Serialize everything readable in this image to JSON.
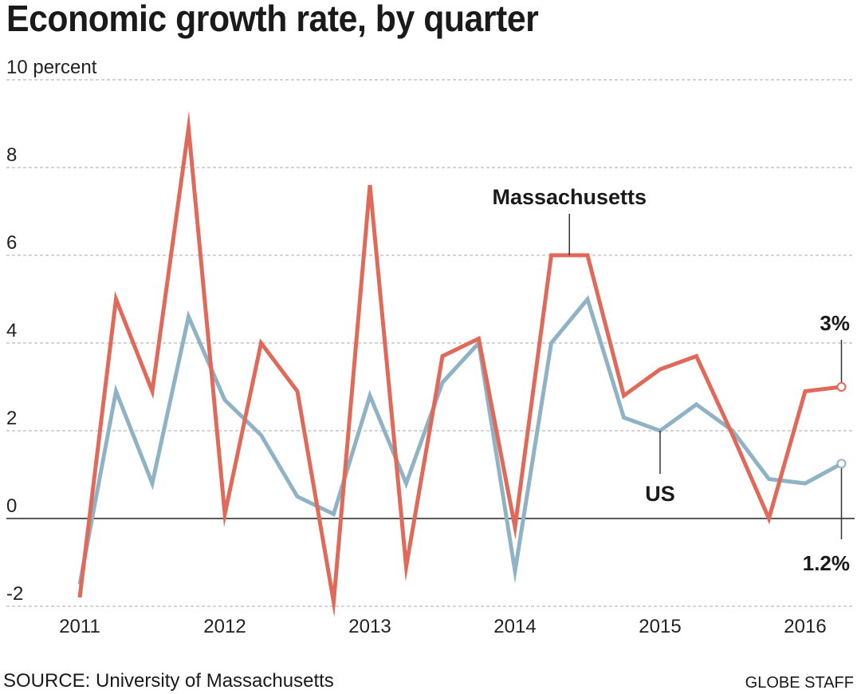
{
  "title": "Economic growth rate, by quarter",
  "source": "SOURCE: University of Massachusetts",
  "credit": "GLOBE STAFF",
  "colors": {
    "massachusetts": "#e0695a",
    "us": "#8fb3c4",
    "grid": "#bbbbbb",
    "zero": "#222222"
  },
  "chart_data": {
    "type": "line",
    "ylim": [
      -2,
      10
    ],
    "yticks": [
      -2,
      0,
      2,
      4,
      6,
      8,
      10
    ],
    "ytick_labels": [
      "-2",
      "0",
      "2",
      "4",
      "6",
      "8",
      "10 percent"
    ],
    "xticks": [
      {
        "label": "2011",
        "quarter_index": 0
      },
      {
        "label": "2012",
        "quarter_index": 4
      },
      {
        "label": "2013",
        "quarter_index": 8
      },
      {
        "label": "2014",
        "quarter_index": 12
      },
      {
        "label": "2015",
        "quarter_index": 16
      },
      {
        "label": "2016",
        "quarter_index": 20
      }
    ],
    "grid": true,
    "series": [
      {
        "name": "Massachusetts",
        "values": [
          -1.8,
          5.0,
          2.9,
          8.9,
          0.1,
          4.0,
          2.9,
          -1.9,
          7.6,
          -1.1,
          3.7,
          4.1,
          -0.2,
          6.0,
          6.0,
          2.8,
          3.4,
          3.7,
          1.9,
          0.0,
          2.9,
          3.0
        ]
      },
      {
        "name": "US",
        "values": [
          -1.5,
          2.9,
          0.8,
          4.6,
          2.7,
          1.9,
          0.5,
          0.1,
          2.8,
          0.8,
          3.1,
          4.0,
          -1.2,
          4.0,
          5.0,
          2.3,
          2.0,
          2.6,
          2.0,
          0.9,
          0.8,
          1.25
        ]
      }
    ],
    "annotations": {
      "massachusetts_end": "3%",
      "us_end": "1.2%"
    }
  }
}
